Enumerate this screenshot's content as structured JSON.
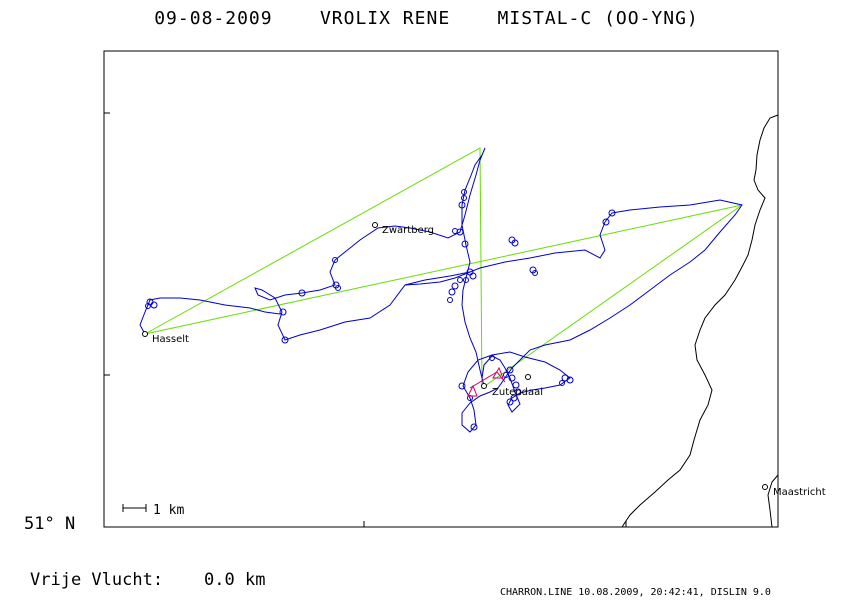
{
  "header": {
    "date": "09-08-2009",
    "pilot": "VROLIX RENE",
    "glider": "MISTAL-C (OO-YNG)"
  },
  "axis": {
    "lat_label": "51° N"
  },
  "scale": {
    "label": "1 km"
  },
  "towns": [
    {
      "name": "Zwartberg"
    },
    {
      "name": "Hasselt"
    },
    {
      "name": "Zutendaal"
    },
    {
      "name": "Maastricht"
    }
  ],
  "colors": {
    "track": "#0000cc",
    "task": "#66dd00",
    "start": "#cc0066",
    "border": "#000000"
  },
  "summary": {
    "label": "Vrije Vlucht:",
    "value": "0.0 km"
  },
  "footer": "CHARRON.LINE 10.08.2009, 20:42:41, DISLIN 9.0"
}
